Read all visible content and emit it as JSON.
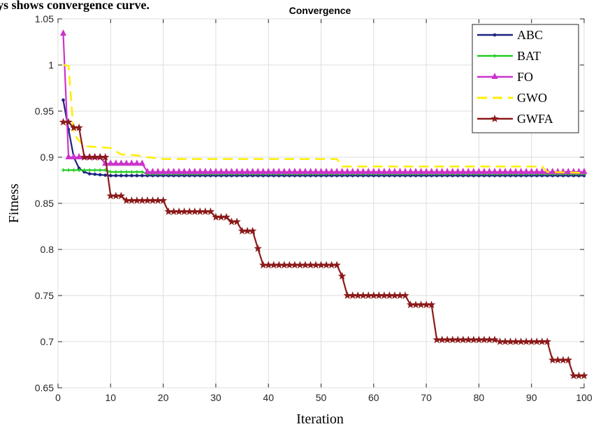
{
  "caption_fragment": "ys shows convergence curve.",
  "chart_data": {
    "type": "line",
    "title": "Convergence",
    "xlabel": "Iteration",
    "ylabel": "Fitness",
    "xlim": [
      0,
      100
    ],
    "ylim": [
      0.65,
      1.05
    ],
    "xticks": [
      "0",
      "10",
      "20",
      "30",
      "40",
      "50",
      "60",
      "70",
      "80",
      "90",
      "100"
    ],
    "yticks": [
      "0.65",
      "0.7",
      "0.75",
      "0.8",
      "0.85",
      "0.9",
      "0.95",
      "1",
      "1.05"
    ],
    "grid": true,
    "legend_position": "top-right",
    "series": [
      {
        "name": "ABC",
        "color": "#1a237e",
        "marker": "dot",
        "dashed": false,
        "points": [
          [
            1,
            0.962
          ],
          [
            2,
            0.93
          ],
          [
            3,
            0.9
          ],
          [
            4,
            0.888
          ],
          [
            5,
            0.884
          ],
          [
            6,
            0.882
          ],
          [
            8,
            0.881
          ],
          [
            10,
            0.88
          ],
          [
            100,
            0.88
          ]
        ]
      },
      {
        "name": "BAT",
        "color": "#22cc22",
        "marker": "plus",
        "dashed": false,
        "points": [
          [
            1,
            0.886
          ],
          [
            9,
            0.886
          ],
          [
            10,
            0.884
          ],
          [
            16,
            0.884
          ],
          [
            17,
            0.882
          ],
          [
            100,
            0.882
          ]
        ]
      },
      {
        "name": "FO",
        "color": "#cc33cc",
        "marker": "triangle",
        "dashed": false,
        "points": [
          [
            1,
            1.034
          ],
          [
            2,
            0.9
          ],
          [
            8,
            0.9
          ],
          [
            9,
            0.893
          ],
          [
            16,
            0.893
          ],
          [
            17,
            0.884
          ],
          [
            100,
            0.884
          ]
        ]
      },
      {
        "name": "GWO",
        "color": "#ffee00",
        "marker": "none",
        "dashed": true,
        "points": [
          [
            1,
            1.0
          ],
          [
            2,
            0.999
          ],
          [
            3,
            0.925
          ],
          [
            4,
            0.918
          ],
          [
            5,
            0.912
          ],
          [
            10,
            0.91
          ],
          [
            12,
            0.903
          ],
          [
            15,
            0.902
          ],
          [
            17,
            0.9
          ],
          [
            20,
            0.898
          ],
          [
            53,
            0.898
          ],
          [
            54,
            0.89
          ],
          [
            92,
            0.89
          ],
          [
            93,
            0.884
          ],
          [
            100,
            0.883
          ]
        ]
      },
      {
        "name": "GWFA",
        "color": "#8b1a1a",
        "marker": "star",
        "dashed": false,
        "points": [
          [
            1,
            0.938
          ],
          [
            2,
            0.938
          ],
          [
            3,
            0.932
          ],
          [
            4,
            0.932
          ],
          [
            5,
            0.9
          ],
          [
            9,
            0.9
          ],
          [
            10,
            0.858
          ],
          [
            12,
            0.858
          ],
          [
            13,
            0.853
          ],
          [
            20,
            0.853
          ],
          [
            21,
            0.841
          ],
          [
            29,
            0.841
          ],
          [
            30,
            0.835
          ],
          [
            32,
            0.835
          ],
          [
            33,
            0.83
          ],
          [
            34,
            0.83
          ],
          [
            35,
            0.82
          ],
          [
            37,
            0.82
          ],
          [
            38,
            0.801
          ],
          [
            39,
            0.783
          ],
          [
            53,
            0.783
          ],
          [
            54,
            0.771
          ],
          [
            55,
            0.75
          ],
          [
            66,
            0.75
          ],
          [
            67,
            0.74
          ],
          [
            71,
            0.74
          ],
          [
            72,
            0.702
          ],
          [
            83,
            0.702
          ],
          [
            84,
            0.7
          ],
          [
            93,
            0.7
          ],
          [
            94,
            0.68
          ],
          [
            97,
            0.68
          ],
          [
            98,
            0.663
          ],
          [
            100,
            0.663
          ]
        ]
      }
    ]
  }
}
